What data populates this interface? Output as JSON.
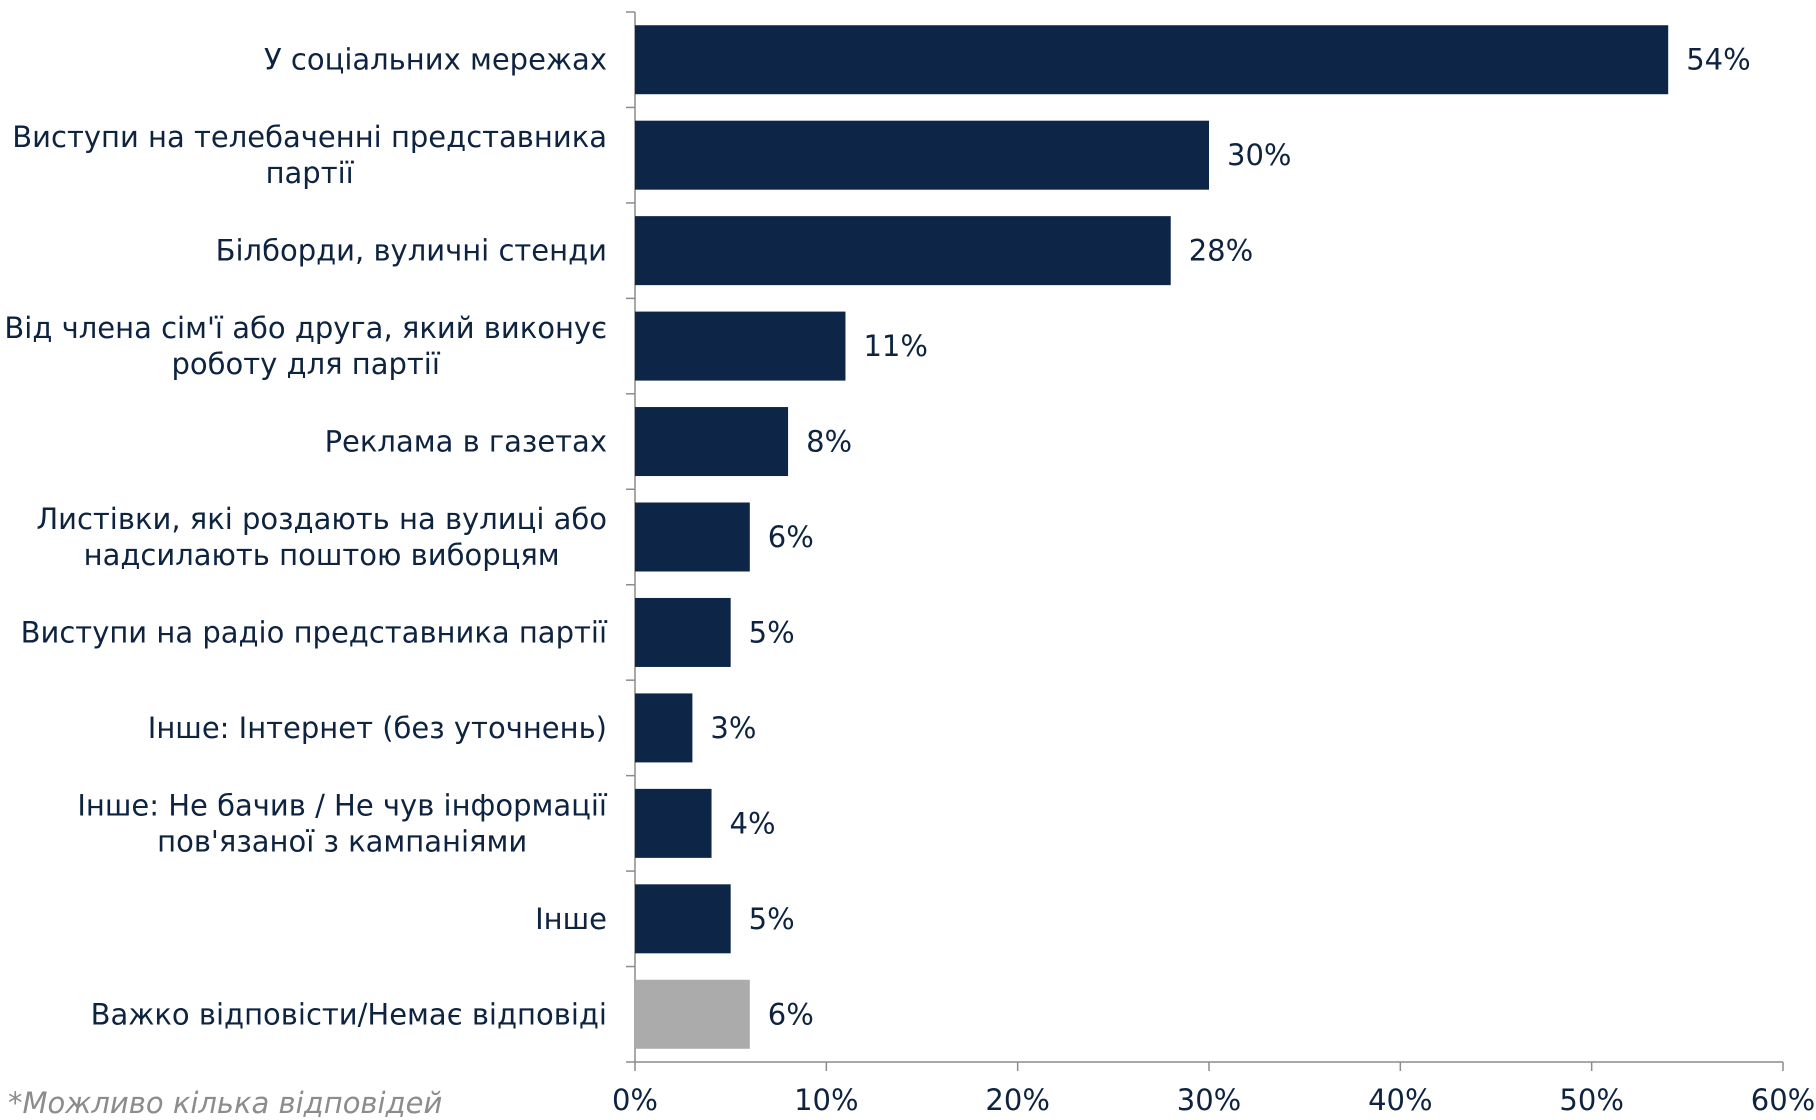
{
  "chart_data": {
    "type": "bar",
    "orientation": "horizontal",
    "categories": [
      [
        "У соціальних мережах"
      ],
      [
        "Виступи на телебаченні представника",
        "партії"
      ],
      [
        "Білборди, вуличні стенди"
      ],
      [
        "Від члена сім'ї або друга, який виконує",
        "роботу для партії"
      ],
      [
        "Реклама в газетах"
      ],
      [
        "Листівки, які роздають на вулиці або",
        "надсилають поштою виборцям"
      ],
      [
        "Виступи на радіо представника партії"
      ],
      [
        "Інше: Інтернет (без уточнень)"
      ],
      [
        "Інше: Не бачив / Не чув інформації",
        "пов'язаної з кампаніями"
      ],
      [
        "Інше"
      ],
      [
        "Важко відповісти/Немає відповіді"
      ]
    ],
    "values": [
      54,
      30,
      28,
      11,
      8,
      6,
      5,
      3,
      4,
      5,
      6
    ],
    "value_labels": [
      "54%",
      "30%",
      "28%",
      "11%",
      "8%",
      "6%",
      "5%",
      "3%",
      "4%",
      "5%",
      "6%"
    ],
    "bar_colors": [
      "#0d2647",
      "#0d2647",
      "#0d2647",
      "#0d2647",
      "#0d2647",
      "#0d2647",
      "#0d2647",
      "#0d2647",
      "#0d2647",
      "#0d2647",
      "#ababab"
    ],
    "xlim": [
      0,
      60
    ],
    "x_ticks": [
      0,
      10,
      20,
      30,
      40,
      50,
      60
    ],
    "x_tick_labels": [
      "0%",
      "10%",
      "20%",
      "30%",
      "40%",
      "50%",
      "60%"
    ],
    "grid": false
  },
  "footnote": "*Можливо кілька відповідей"
}
